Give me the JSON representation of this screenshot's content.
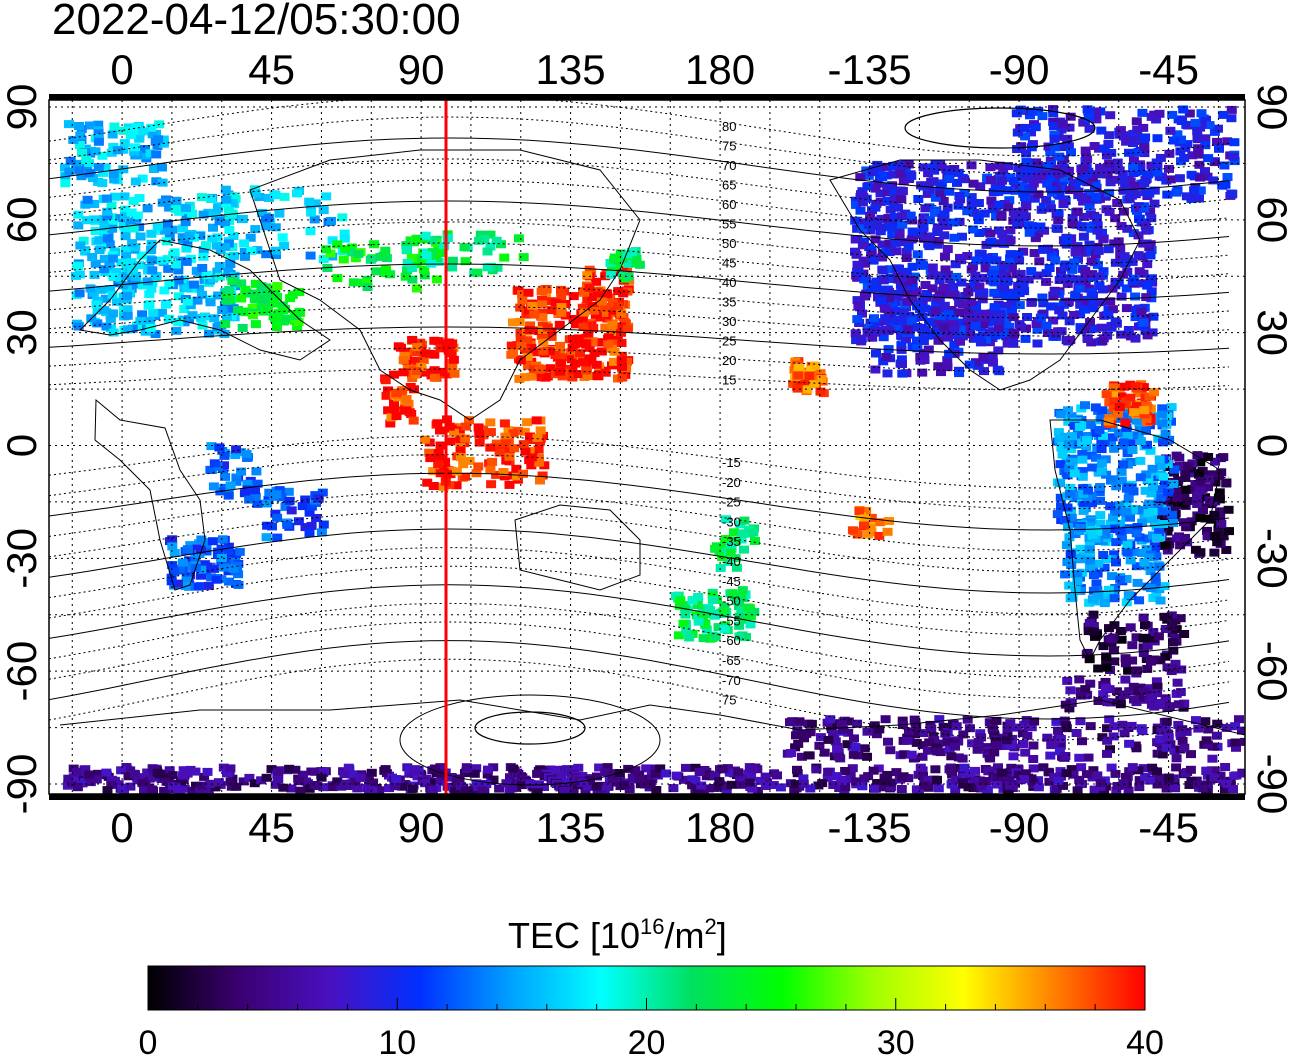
{
  "timestamp": "2022-04-12/05:30:00",
  "map": {
    "lon_ticks_top": [
      "0",
      "45",
      "90",
      "135",
      "180",
      "-135",
      "-90",
      "-45"
    ],
    "lon_ticks_bottom": [
      "0",
      "45",
      "90",
      "135",
      "180",
      "-135",
      "-90",
      "-45"
    ],
    "lat_ticks_left": [
      "90",
      "60",
      "30",
      "0",
      "-30",
      "-60",
      "-90"
    ],
    "lat_ticks_right": [
      "90",
      "60",
      "30",
      "0",
      "-30",
      "-60",
      "-90"
    ],
    "lon_range": [
      -22,
      338
    ],
    "lat_range": [
      -90,
      90
    ],
    "grid": "dotted, 15 deg",
    "terminator_longitude_deg": 97.5,
    "terminator_color": "#ff0000",
    "contour_labels_north": [
      "80",
      "75",
      "70",
      "65",
      "60",
      "55",
      "50",
      "45",
      "40",
      "35",
      "30",
      "25",
      "20",
      "15"
    ],
    "contour_labels_south": [
      "-15",
      "-20",
      "-25",
      "-30",
      "-35",
      "-40",
      "-45",
      "-50",
      "-55",
      "-60",
      "-65",
      "-70",
      "75"
    ]
  },
  "colorbar": {
    "title": "TEC  [10",
    "title_sup1": "16",
    "title_mid": "/m",
    "title_sup2": "2",
    "title_end": "]",
    "min": 0,
    "max": 40,
    "tick_labels": [
      "0",
      "10",
      "20",
      "30",
      "40"
    ],
    "colors": [
      "#000000",
      "#3a0070",
      "#4a10c0",
      "#0030ff",
      "#00a0ff",
      "#00ffff",
      "#00e060",
      "#00ff00",
      "#a0ff00",
      "#ffff00",
      "#ff8000",
      "#ff0000"
    ]
  },
  "tec_regions": [
    {
      "region": "north-america",
      "tec_level": 9
    },
    {
      "region": "south-america-east",
      "tec_level": 3
    },
    {
      "region": "south-america-north",
      "tec_level": 14
    },
    {
      "region": "caribbean",
      "tec_level": 38
    },
    {
      "region": "east-asia",
      "tec_level": 39
    },
    {
      "region": "indian-subcontinent",
      "tec_level": 39
    },
    {
      "region": "europe",
      "tec_level": 16
    },
    {
      "region": "mediterranean",
      "tec_level": 24
    },
    {
      "region": "siberia",
      "tec_level": 22
    },
    {
      "region": "africa-south",
      "tec_level": 12
    },
    {
      "region": "antarctica-coast",
      "tec_level": 5
    },
    {
      "region": "australia-new-zealand",
      "tec_level": 22
    },
    {
      "region": "hawaii",
      "tec_level": 37
    }
  ]
}
